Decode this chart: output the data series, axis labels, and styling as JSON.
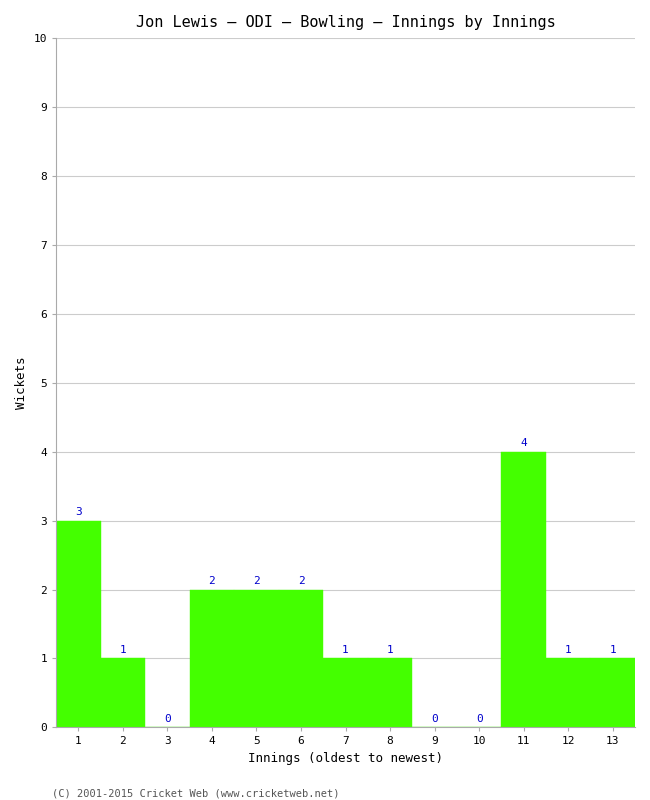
{
  "title": "Jon Lewis – ODI – Bowling – Innings by Innings",
  "xlabel": "Innings (oldest to newest)",
  "ylabel": "Wickets",
  "categories": [
    1,
    2,
    3,
    4,
    5,
    6,
    7,
    8,
    9,
    10,
    11,
    12,
    13
  ],
  "values": [
    3,
    1,
    0,
    2,
    2,
    2,
    1,
    1,
    0,
    0,
    4,
    1,
    1
  ],
  "bar_color": "#44ff00",
  "bar_edge_color": "#44ff00",
  "ylim": [
    0,
    10
  ],
  "yticks": [
    0,
    1,
    2,
    3,
    4,
    5,
    6,
    7,
    8,
    9,
    10
  ],
  "annotation_color": "#0000cc",
  "annotation_fontsize": 8,
  "title_fontsize": 11,
  "axis_label_fontsize": 9,
  "tick_fontsize": 8,
  "background_color": "#ffffff",
  "grid_color": "#cccccc",
  "footer_text": "(C) 2001-2015 Cricket Web (www.cricketweb.net)",
  "footer_fontsize": 7.5,
  "footer_color": "#555555"
}
